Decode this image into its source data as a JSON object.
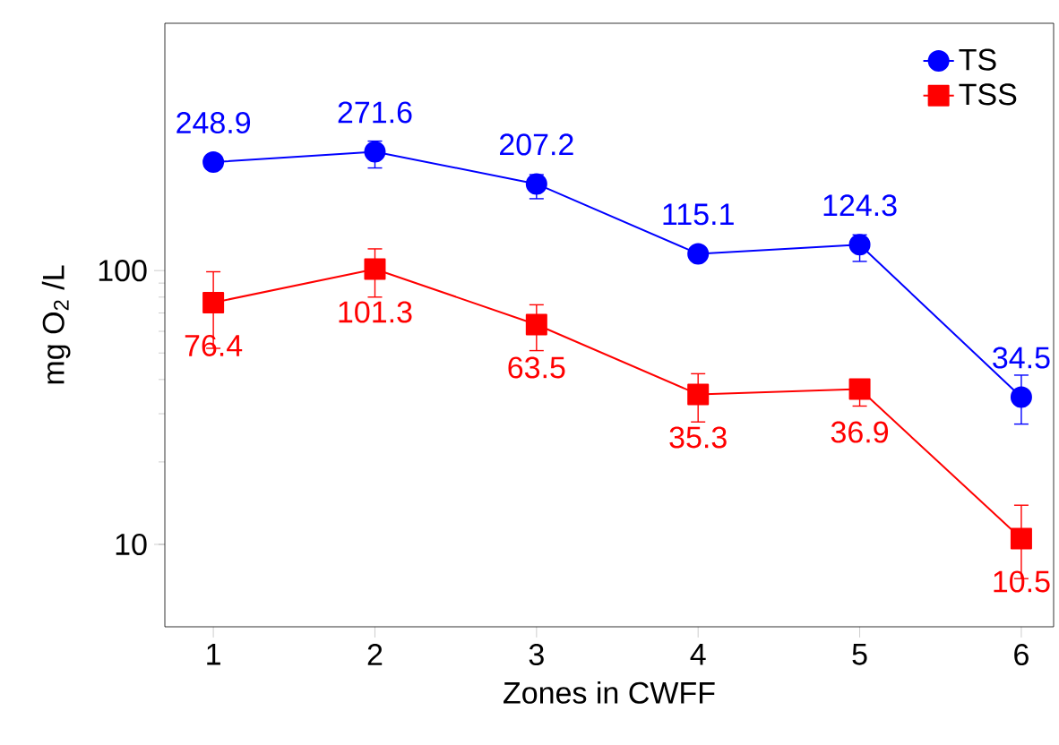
{
  "chart_data": {
    "type": "line",
    "xlabel": "Zones in CWFF",
    "ylabel": "mg O$_{2}$ /L",
    "x": [
      1,
      2,
      3,
      4,
      5,
      6
    ],
    "series": [
      {
        "name": "TS",
        "color": "#0000ff",
        "marker": "circle",
        "values": [
          248.9,
          271.6,
          207.2,
          115.1,
          124.3,
          34.5
        ],
        "errors": [
          null,
          [
            237,
            297
          ],
          [
            183,
            224
          ],
          null,
          [
            108,
            135
          ],
          [
            27.5,
            41.5
          ]
        ]
      },
      {
        "name": "TSS",
        "color": "#ff0000",
        "marker": "square",
        "values": [
          76.4,
          101.3,
          63.5,
          35.3,
          36.9,
          10.5
        ],
        "errors": [
          [
            52,
            99
          ],
          [
            80,
            120
          ],
          [
            51,
            75
          ],
          [
            28,
            42
          ],
          [
            32,
            39
          ],
          [
            7.5,
            13.9
          ]
        ]
      }
    ],
    "xlim": [
      0.7,
      6.2
    ],
    "ylim": [
      5,
      800
    ],
    "xticks": [
      1,
      2,
      3,
      4,
      5,
      6
    ],
    "yticks": [
      10,
      100
    ],
    "log": "y",
    "grid": false,
    "legend": "top right",
    "data_labels": true,
    "line_style": "solid"
  }
}
